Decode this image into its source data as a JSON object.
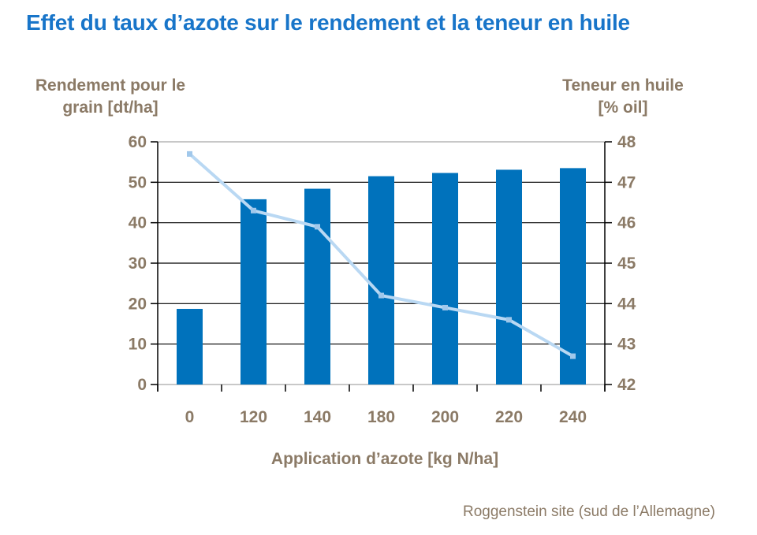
{
  "footer": {
    "source": "Roggenstein site (sud de l’Allemagne)"
  },
  "colors": {
    "title_blue": "#1875C9",
    "bar_blue": "#0072BC",
    "line_light_blue": "#B9D8F3",
    "marker_light_blue": "#A1C8EB",
    "axis_text_brown": "#8B7A66",
    "grid_black": "#000000",
    "frame_gray": "#A6A6A6"
  },
  "chart_data": {
    "type": "bar",
    "title": "Effet du taux d’azote sur le rendement et la teneur en huile",
    "categories": [
      "0",
      "120",
      "140",
      "180",
      "200",
      "220",
      "240"
    ],
    "series": [
      {
        "name": "Rendement pour le grain [dt/ha]",
        "kind": "bar",
        "axis": "left",
        "color": "#0072BC",
        "values": [
          18.7,
          45.8,
          48.4,
          51.5,
          52.3,
          53.1,
          53.5
        ]
      },
      {
        "name": "Teneur en huile [% oil]",
        "kind": "line",
        "axis": "right",
        "color": "#B9D8F3",
        "marker_color": "#A1C8EB",
        "values": [
          47.7,
          46.3,
          45.9,
          44.2,
          43.9,
          43.6,
          42.7
        ]
      }
    ],
    "left_axis": {
      "label_line1": "Rendement pour le",
      "label_line2": "grain [dt/ha]",
      "min": 0,
      "max": 60,
      "step": 10
    },
    "right_axis": {
      "label_line1": "Teneur en huile",
      "label_line2": "[% oil]",
      "min": 42,
      "max": 48,
      "step": 1
    },
    "xlabel": "Application d’azote [kg N/ha]",
    "grid": true,
    "legend": "none"
  }
}
